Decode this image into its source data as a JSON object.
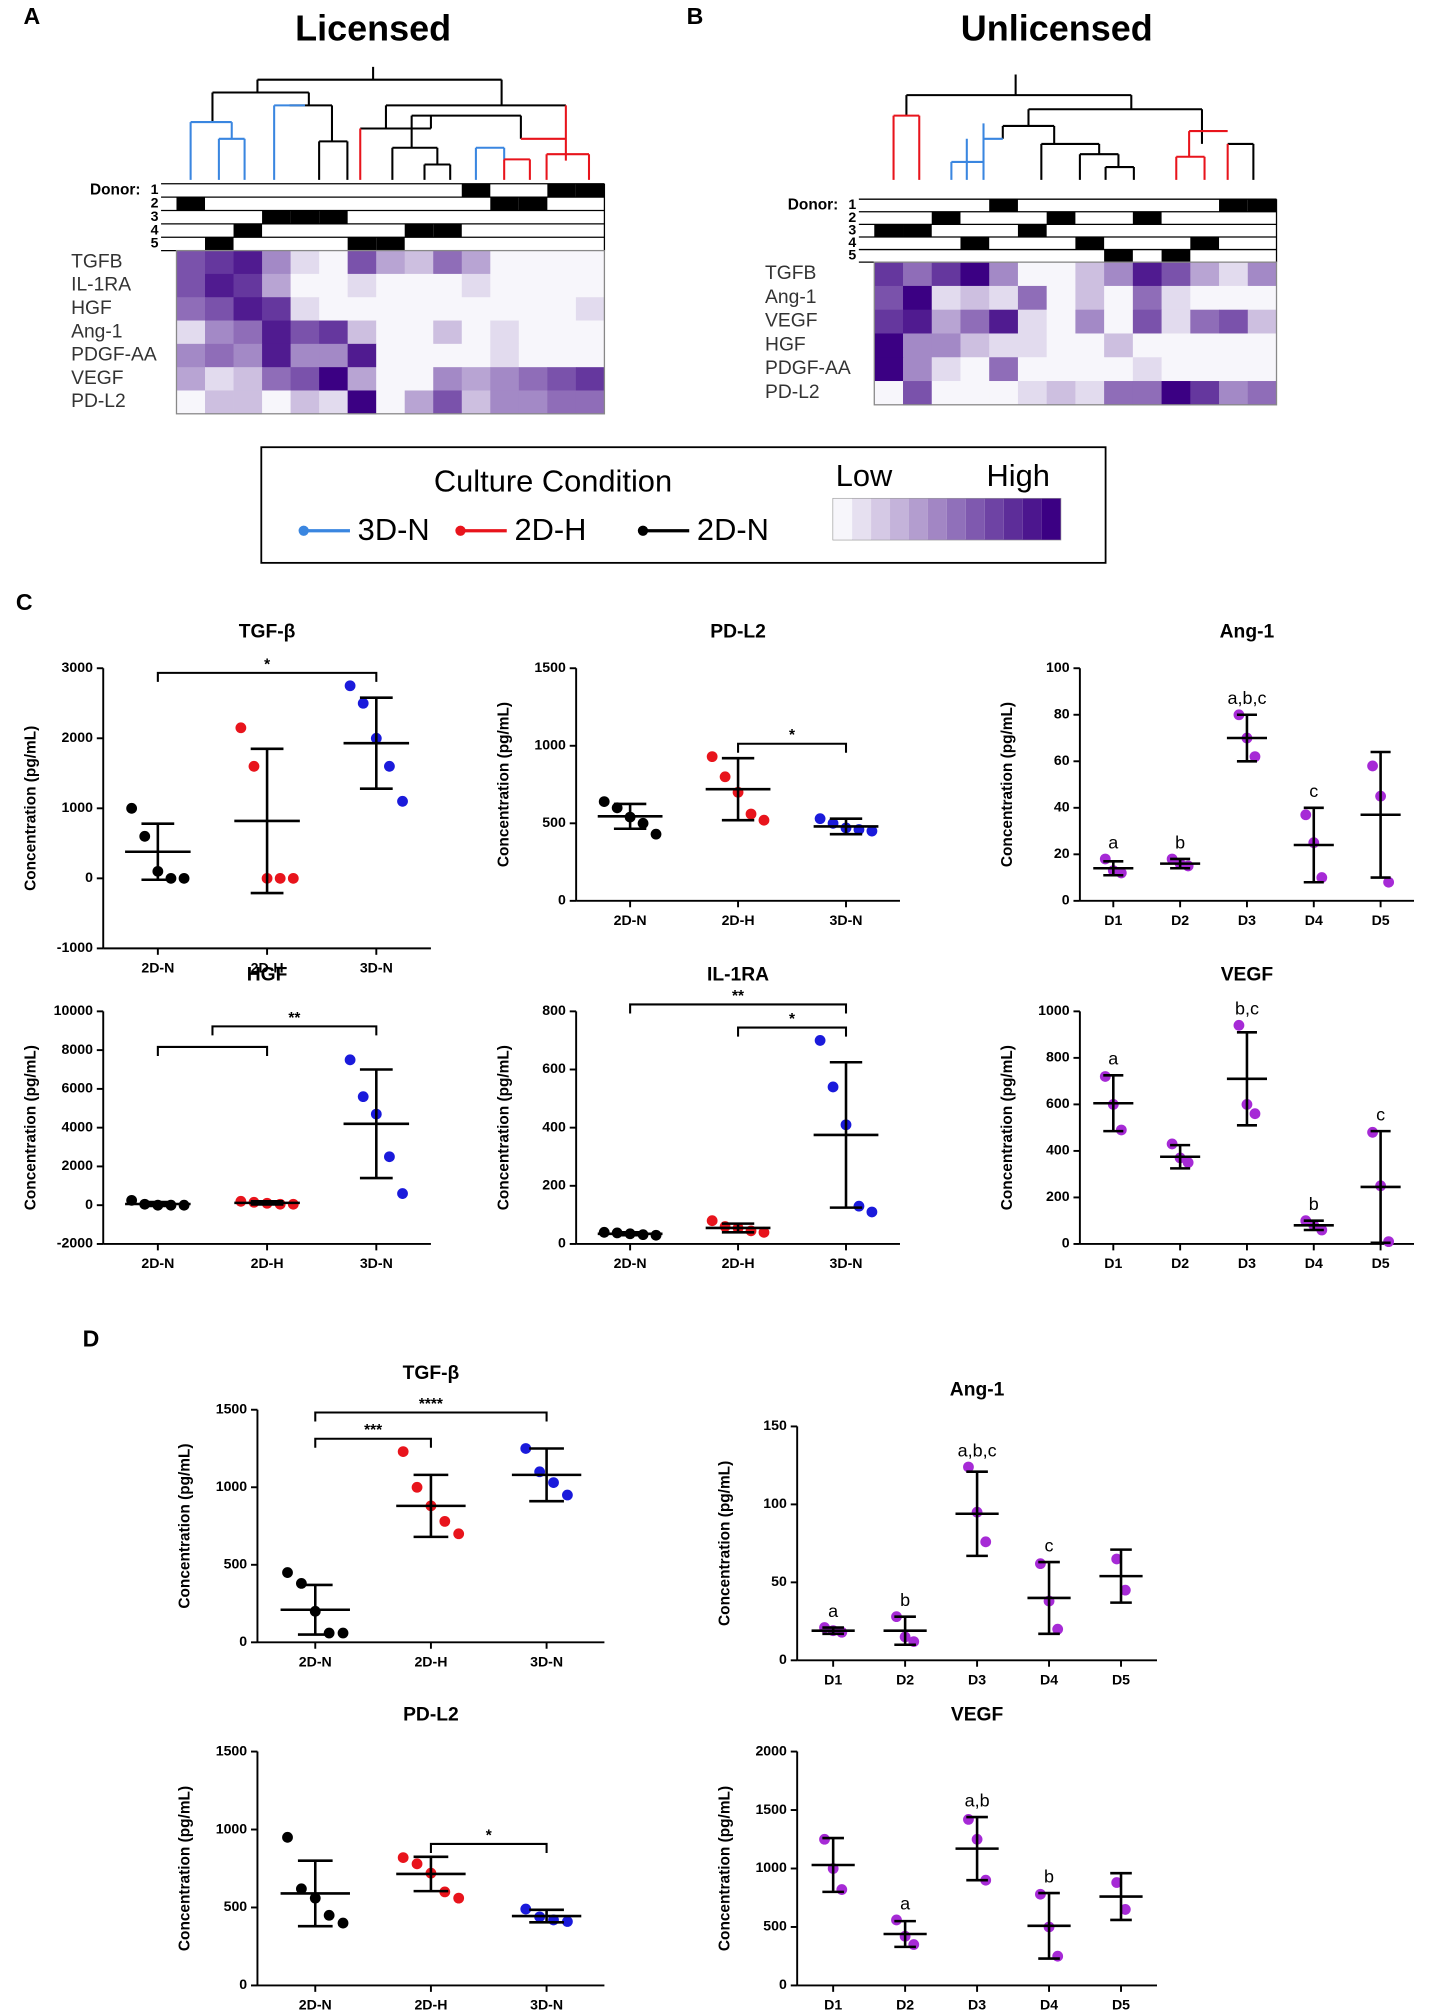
{
  "panels": [
    "A",
    "B",
    "C",
    "D"
  ],
  "legend": {
    "title": "Culture Condition",
    "entries": [
      {
        "name": "3D-N",
        "color": "#3a86e0"
      },
      {
        "name": "2D-H",
        "color": "#e8141c"
      },
      {
        "name": "2D-N",
        "color": "#000000"
      }
    ],
    "low": "Low",
    "high": "High"
  },
  "chart_data": [
    {
      "type": "heatmap",
      "title": "Licensed",
      "donor_label": "Donor:",
      "donors": [
        "1",
        "2",
        "3",
        "4",
        "5"
      ],
      "column_donors": [
        2,
        5,
        4,
        3,
        3,
        3,
        5,
        5,
        4,
        4,
        1,
        2,
        2,
        1,
        1
      ],
      "rows": [
        "TGFB",
        "IL-1RA",
        "HGF",
        "Ang-1",
        "PDGF-AA",
        "VEGF",
        "PD-L2"
      ],
      "color_low": "#f7f6fb",
      "color_high": "#3b0083",
      "values": [
        [
          7,
          8,
          9,
          5,
          2,
          1,
          7,
          4,
          3,
          6,
          4,
          1,
          1,
          1,
          1
        ],
        [
          7,
          9,
          8,
          4,
          1,
          1,
          2,
          1,
          1,
          1,
          2,
          1,
          1,
          1,
          1
        ],
        [
          6,
          7,
          9,
          8,
          2,
          1,
          1,
          1,
          1,
          1,
          1,
          1,
          1,
          1,
          2
        ],
        [
          2,
          5,
          6,
          9,
          7,
          8,
          3,
          1,
          1,
          3,
          1,
          2,
          1,
          1,
          1
        ],
        [
          5,
          6,
          5,
          9,
          5,
          5,
          9,
          1,
          1,
          1,
          1,
          2,
          1,
          1,
          1
        ],
        [
          4,
          2,
          3,
          6,
          7,
          10,
          4,
          1,
          1,
          5,
          4,
          5,
          6,
          7,
          8
        ],
        [
          1,
          3,
          3,
          1,
          3,
          2,
          10,
          1,
          4,
          7,
          3,
          5,
          5,
          6,
          6
        ]
      ]
    },
    {
      "type": "heatmap",
      "title": "Unlicensed",
      "donor_label": "Donor:",
      "donors": [
        "1",
        "2",
        "3",
        "4",
        "5"
      ],
      "column_donors": [
        3,
        3,
        2,
        4,
        1,
        3,
        2,
        4,
        5,
        2,
        5,
        4,
        1,
        1
      ],
      "rows": [
        "TGFB",
        "Ang-1",
        "VEGF",
        "HGF",
        "PDGF-AA",
        "PD-L2"
      ],
      "color_low": "#f7f6fb",
      "color_high": "#3b0083",
      "values": [
        [
          8,
          6,
          8,
          10,
          5,
          1,
          1,
          3,
          5,
          9,
          7,
          4,
          2,
          5
        ],
        [
          7,
          10,
          2,
          3,
          2,
          6,
          1,
          3,
          1,
          6,
          2,
          1,
          1,
          1
        ],
        [
          8,
          9,
          4,
          6,
          9,
          2,
          1,
          5,
          1,
          7,
          2,
          6,
          7,
          3
        ],
        [
          10,
          5,
          5,
          3,
          2,
          2,
          1,
          1,
          3,
          1,
          1,
          1,
          1,
          1
        ],
        [
          10,
          5,
          2,
          1,
          6,
          1,
          1,
          1,
          1,
          2,
          1,
          1,
          1,
          1
        ],
        [
          1,
          7,
          1,
          1,
          1,
          2,
          3,
          2,
          6,
          6,
          10,
          8,
          5,
          6
        ]
      ]
    },
    {
      "type": "dot",
      "title": "TGF-β",
      "y_label": "Concentration (pg/mL)",
      "categories": [
        "2D-N",
        "2D-H",
        "3D-N"
      ],
      "ylim": [
        -1000,
        3000
      ],
      "yticks": [
        -1000,
        0,
        1000,
        2000,
        3000
      ],
      "groups": [
        {
          "color": "#000000",
          "points": [
            1000,
            600,
            100,
            0,
            0
          ],
          "mean": 380,
          "sd": 400
        },
        {
          "color": "#e8141c",
          "points": [
            2150,
            1600,
            0,
            0,
            0
          ],
          "mean": 820,
          "sd": 1030
        },
        {
          "color": "#1a1adb",
          "points": [
            2750,
            2500,
            2000,
            1600,
            1100
          ],
          "mean": 1930,
          "sd": 650
        }
      ],
      "brackets": [
        {
          "left": [
            "2D-N"
          ],
          "right": [
            "3D-N"
          ],
          "label": "*"
        }
      ],
      "letters": [
        null,
        null,
        null
      ]
    },
    {
      "type": "dot",
      "title": "PD-L2",
      "y_label": "Concentration (pg/mL)",
      "categories": [
        "2D-N",
        "2D-H",
        "3D-N"
      ],
      "ylim": [
        0,
        1500
      ],
      "yticks": [
        0,
        500,
        1000,
        1500
      ],
      "groups": [
        {
          "color": "#000000",
          "points": [
            640,
            600,
            540,
            500,
            430
          ],
          "mean": 545,
          "sd": 80
        },
        {
          "color": "#e8141c",
          "points": [
            930,
            800,
            700,
            560,
            520
          ],
          "mean": 720,
          "sd": 200
        },
        {
          "color": "#1a1adb",
          "points": [
            530,
            500,
            470,
            460,
            450
          ],
          "mean": 480,
          "sd": 50
        }
      ],
      "brackets": [
        {
          "left": [
            "2D-H"
          ],
          "right": [
            "3D-N"
          ],
          "label": "*"
        }
      ],
      "letters": [
        null,
        null,
        null
      ]
    },
    {
      "type": "dot",
      "title": "Ang-1",
      "y_label": "Concentration (pg/mL)",
      "categories": [
        "D1",
        "D2",
        "D3",
        "D4",
        "D5"
      ],
      "ylim": [
        0,
        100
      ],
      "yticks": [
        0,
        20,
        40,
        60,
        80,
        100
      ],
      "groups": [
        {
          "color": "#a62ad6",
          "points": [
            18,
            13,
            12
          ],
          "mean": 14,
          "sd": 3
        },
        {
          "color": "#a62ad6",
          "points": [
            18,
            16,
            15
          ],
          "mean": 16,
          "sd": 2
        },
        {
          "color": "#a62ad6",
          "points": [
            80,
            70,
            62
          ],
          "mean": 70,
          "sd": 10
        },
        {
          "color": "#a62ad6",
          "points": [
            37,
            25,
            10
          ],
          "mean": 24,
          "sd": 16
        },
        {
          "color": "#a62ad6",
          "points": [
            58,
            45,
            8
          ],
          "mean": 37,
          "sd": 27
        }
      ],
      "brackets": [],
      "letters": [
        "a",
        "b",
        "a,b,c",
        "c",
        null
      ]
    },
    {
      "type": "dot",
      "title": "HGF",
      "y_label": "Concentration (pg/mL)",
      "categories": [
        "2D-N",
        "2D-H",
        "3D-N"
      ],
      "ylim": [
        -2000,
        10000
      ],
      "yticks": [
        -2000,
        0,
        2000,
        4000,
        6000,
        8000,
        10000
      ],
      "groups": [
        {
          "color": "#000000",
          "points": [
            250,
            50,
            0,
            0,
            0
          ],
          "mean": 60,
          "sd": 100
        },
        {
          "color": "#e8141c",
          "points": [
            200,
            150,
            100,
            50,
            50
          ],
          "mean": 120,
          "sd": 80
        },
        {
          "color": "#1a1adb",
          "points": [
            7500,
            5600,
            4700,
            2500,
            600
          ],
          "mean": 4200,
          "sd": 2800
        }
      ],
      "brackets": [
        {
          "left": [
            "2D-N",
            "2D-H"
          ],
          "right": [
            "3D-N"
          ],
          "label": "**"
        }
      ],
      "letters": [
        null,
        null,
        null
      ]
    },
    {
      "type": "dot",
      "title": "IL-1RA",
      "y_label": "Concentration (pg/mL)",
      "categories": [
        "2D-N",
        "2D-H",
        "3D-N"
      ],
      "ylim": [
        0,
        800
      ],
      "yticks": [
        0,
        200,
        400,
        600,
        800
      ],
      "groups": [
        {
          "color": "#000000",
          "points": [
            40,
            38,
            35,
            32,
            30
          ],
          "mean": 35,
          "sd": 5
        },
        {
          "color": "#e8141c",
          "points": [
            80,
            60,
            55,
            45,
            40
          ],
          "mean": 55,
          "sd": 15
        },
        {
          "color": "#1a1adb",
          "points": [
            700,
            540,
            410,
            130,
            110
          ],
          "mean": 375,
          "sd": 250
        }
      ],
      "brackets": [
        {
          "left": [
            "2D-H"
          ],
          "right": [
            "3D-N"
          ],
          "label": "*"
        },
        {
          "left": [
            "2D-N"
          ],
          "right": [
            "3D-N"
          ],
          "label": "**"
        }
      ],
      "letters": [
        null,
        null,
        null
      ]
    },
    {
      "type": "dot",
      "title": "VEGF",
      "y_label": "Concentration (pg/mL)",
      "categories": [
        "D1",
        "D2",
        "D3",
        "D4",
        "D5"
      ],
      "ylim": [
        0,
        1000
      ],
      "yticks": [
        0,
        200,
        400,
        600,
        800,
        1000
      ],
      "groups": [
        {
          "color": "#a62ad6",
          "points": [
            720,
            600,
            490
          ],
          "mean": 605,
          "sd": 120
        },
        {
          "color": "#a62ad6",
          "points": [
            430,
            370,
            350
          ],
          "mean": 375,
          "sd": 50
        },
        {
          "color": "#a62ad6",
          "points": [
            940,
            600,
            560
          ],
          "mean": 710,
          "sd": 200
        },
        {
          "color": "#a62ad6",
          "points": [
            100,
            80,
            60
          ],
          "mean": 80,
          "sd": 20
        },
        {
          "color": "#a62ad6",
          "points": [
            480,
            250,
            10
          ],
          "mean": 245,
          "sd": 240
        }
      ],
      "brackets": [],
      "letters": [
        "a",
        null,
        "b,c",
        "b",
        "c"
      ]
    },
    {
      "type": "dot",
      "title": "TGF-β",
      "y_label": "Concentration (pg/mL)",
      "categories": [
        "2D-N",
        "2D-H",
        "3D-N"
      ],
      "ylim": [
        0,
        1500
      ],
      "yticks": [
        0,
        500,
        1000,
        1500
      ],
      "groups": [
        {
          "color": "#000000",
          "points": [
            450,
            380,
            200,
            60,
            60
          ],
          "mean": 210,
          "sd": 160
        },
        {
          "color": "#e8141c",
          "points": [
            1230,
            1000,
            880,
            780,
            700
          ],
          "mean": 880,
          "sd": 200
        },
        {
          "color": "#1a1adb",
          "points": [
            1250,
            1100,
            1030,
            950
          ],
          "mean": 1080,
          "sd": 170
        }
      ],
      "brackets": [
        {
          "left": [
            "2D-N"
          ],
          "right": [
            "2D-H"
          ],
          "label": "***"
        },
        {
          "left": [
            "2D-N"
          ],
          "right": [
            "3D-N"
          ],
          "label": "****"
        }
      ],
      "letters": [
        null,
        null,
        null
      ]
    },
    {
      "type": "dot",
      "title": "Ang-1",
      "y_label": "Concentration (pg/mL)",
      "categories": [
        "D1",
        "D2",
        "D3",
        "D4",
        "D5"
      ],
      "ylim": [
        0,
        150
      ],
      "yticks": [
        0,
        50,
        100,
        150
      ],
      "groups": [
        {
          "color": "#a62ad6",
          "points": [
            21,
            19,
            18
          ],
          "mean": 19,
          "sd": 2
        },
        {
          "color": "#a62ad6",
          "points": [
            28,
            15,
            12
          ],
          "mean": 19,
          "sd": 9
        },
        {
          "color": "#a62ad6",
          "points": [
            124,
            95,
            76
          ],
          "mean": 94,
          "sd": 27
        },
        {
          "color": "#a62ad6",
          "points": [
            62,
            38,
            20
          ],
          "mean": 40,
          "sd": 23
        },
        {
          "color": "#a62ad6",
          "points": [
            65,
            45
          ],
          "mean": 54,
          "sd": 17
        }
      ],
      "brackets": [],
      "letters": [
        "a",
        "b",
        "a,b,c",
        "c",
        null
      ]
    },
    {
      "type": "dot",
      "title": "PD-L2",
      "y_label": "Concentration (pg/mL)",
      "categories": [
        "2D-N",
        "2D-H",
        "3D-N"
      ],
      "ylim": [
        0,
        1500
      ],
      "yticks": [
        0,
        500,
        1000,
        1500
      ],
      "groups": [
        {
          "color": "#000000",
          "points": [
            950,
            620,
            560,
            450,
            400
          ],
          "mean": 590,
          "sd": 210
        },
        {
          "color": "#e8141c",
          "points": [
            820,
            780,
            720,
            600,
            560
          ],
          "mean": 715,
          "sd": 110
        },
        {
          "color": "#1a1adb",
          "points": [
            490,
            440,
            420,
            410
          ],
          "mean": 445,
          "sd": 40
        }
      ],
      "brackets": [
        {
          "left": [
            "2D-H"
          ],
          "right": [
            "3D-N"
          ],
          "label": "*"
        }
      ],
      "letters": [
        null,
        null,
        null
      ]
    },
    {
      "type": "dot",
      "title": "VEGF",
      "y_label": "Concentration (pg/mL)",
      "categories": [
        "D1",
        "D2",
        "D3",
        "D4",
        "D5"
      ],
      "ylim": [
        0,
        2000
      ],
      "yticks": [
        0,
        500,
        1000,
        1500,
        2000
      ],
      "groups": [
        {
          "color": "#a62ad6",
          "points": [
            1250,
            1000,
            820
          ],
          "mean": 1030,
          "sd": 230
        },
        {
          "color": "#a62ad6",
          "points": [
            560,
            420,
            350
          ],
          "mean": 440,
          "sd": 110
        },
        {
          "color": "#a62ad6",
          "points": [
            1420,
            1250,
            900
          ],
          "mean": 1170,
          "sd": 270
        },
        {
          "color": "#a62ad6",
          "points": [
            780,
            500,
            250
          ],
          "mean": 510,
          "sd": 280
        },
        {
          "color": "#a62ad6",
          "points": [
            880,
            650
          ],
          "mean": 760,
          "sd": 200
        }
      ],
      "brackets": [],
      "letters": [
        null,
        "a",
        "a,b",
        "b",
        null
      ]
    }
  ]
}
